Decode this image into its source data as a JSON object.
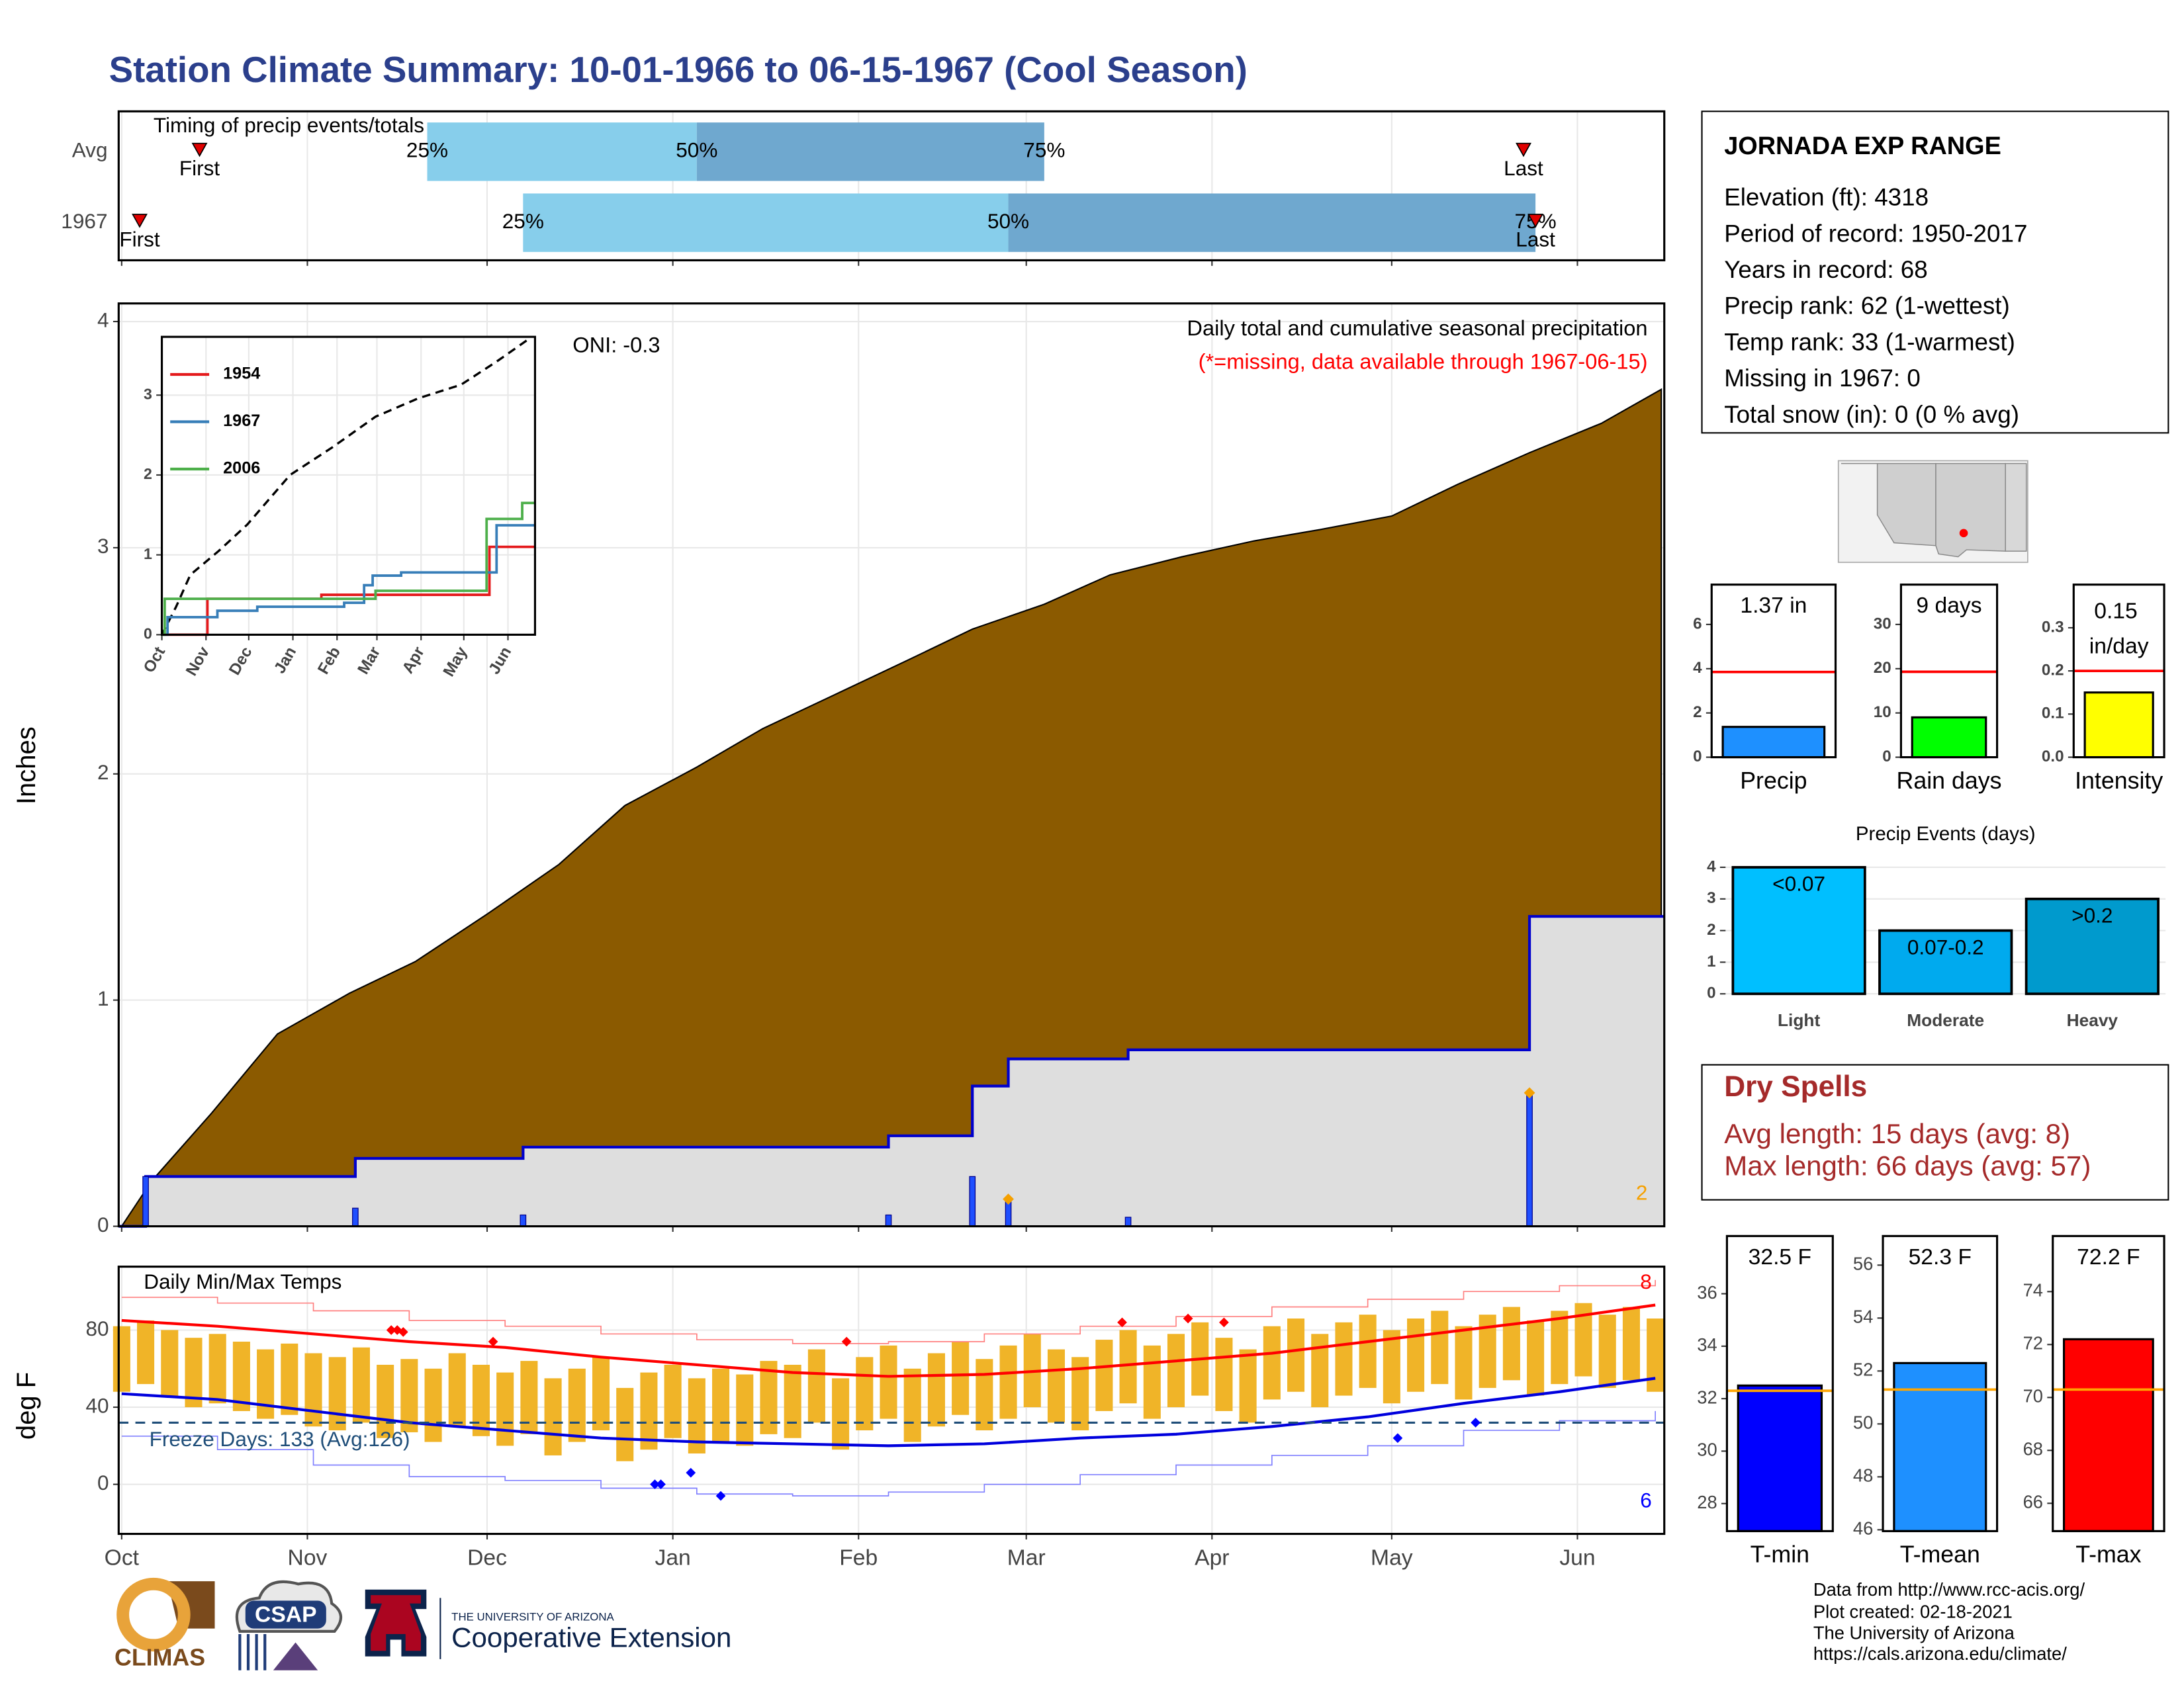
{
  "title": "Station Climate Summary: 10-01-1966 to 06-15-1967 (Cool Season)",
  "station": {
    "name": "JORNADA EXP RANGE",
    "lines": [
      "Elevation (ft): 4318",
      "Period of record: 1950-2017",
      "Years in record: 68",
      "Precip rank: 62 (1-wettest)",
      "Temp rank: 33 (1-warmest)",
      "Missing in 1967: 0",
      "Total snow (in): 0 (0 % avg)"
    ]
  },
  "dry_spells": {
    "title": "Dry Spells",
    "lines": [
      "Avg length: 15 days (avg: 8)",
      "Max length: 66 days (avg: 57)"
    ]
  },
  "credits": [
    "Data from http://www.rcc-acis.org/",
    "Plot created: 02-18-2021",
    "The University of Arizona",
    "https://cals.arizona.edu/climate/"
  ],
  "logos": {
    "climas": "CLIMAS",
    "csap": "CSAP",
    "university": "THE UNIVERSITY OF ARIZONA",
    "extension": "Cooperative Extension"
  },
  "chart_data": [
    {
      "type": "timing",
      "title": "Timing of precip events/totals",
      "categories": [
        "Avg",
        "1967"
      ],
      "xlim": [
        -0.5,
        257.5
      ],
      "xticks": [
        0,
        31,
        61,
        92,
        123,
        151,
        182,
        212,
        243
      ],
      "grid": true,
      "series": [
        {
          "name": "25%",
          "color": "#87ceeb",
          "values": [
            51,
            67
          ]
        },
        {
          "name": "50%",
          "color": "#6fa8cf",
          "values": [
            96,
            148
          ]
        },
        {
          "name": "75%",
          "values": [
            154,
            236
          ]
        }
      ],
      "first": {
        "name": "First",
        "values": [
          13,
          3
        ]
      },
      "last": {
        "name": "Last",
        "values": [
          234,
          236
        ]
      },
      "marker_color": "#e00000"
    },
    {
      "type": "cumulative",
      "ylabel": "Inches",
      "annotation": "Daily total and cumulative seasonal precipitation",
      "note": "(*=missing, data available through 1967-06-15)",
      "oni": "ONI: -0.3",
      "xlim": [
        -0.5,
        257.5
      ],
      "xticks": [
        0,
        31,
        61,
        92,
        123,
        151,
        182,
        212,
        243
      ],
      "ylim": [
        0,
        4.08
      ],
      "yticks": [
        0,
        1,
        2,
        3,
        4
      ],
      "grid": true,
      "average": {
        "color": "#8b5a00",
        "x": [
          0,
          5,
          15,
          26,
          38,
          49,
          61,
          73,
          84,
          96,
          107,
          119,
          131,
          142,
          154,
          165,
          177,
          189,
          200,
          212,
          223,
          235,
          247,
          257
        ],
        "values": [
          0,
          0.2,
          0.5,
          0.85,
          1.03,
          1.17,
          1.38,
          1.6,
          1.86,
          2.03,
          2.2,
          2.35,
          2.5,
          2.64,
          2.75,
          2.88,
          2.96,
          3.03,
          3.08,
          3.14,
          3.28,
          3.42,
          3.55,
          3.7
        ]
      },
      "daily": {
        "color": "#1f4fff",
        "line_color": "#0000cc",
        "x": [
          4,
          39,
          67,
          128,
          142,
          148,
          168,
          235
        ],
        "values": [
          0.22,
          0.08,
          0.05,
          0.05,
          0.22,
          0.12,
          0.04,
          0.59
        ]
      },
      "flags": {
        "color": "#f5a000",
        "x": [
          148,
          235
        ],
        "values": [
          0.12,
          0.59
        ],
        "count": 2
      }
    },
    {
      "type": "line",
      "xlim": [
        0,
        262
      ],
      "ylim": [
        0,
        3.73
      ],
      "yticks": [
        0,
        1,
        2,
        3
      ],
      "xticks": [
        {
          "value": 0,
          "label": "Oct"
        },
        {
          "value": 31,
          "label": "Nov"
        },
        {
          "value": 61,
          "label": "Dec"
        },
        {
          "value": 92,
          "label": "Jan"
        },
        {
          "value": 123,
          "label": "Feb"
        },
        {
          "value": 151,
          "label": "Mar"
        },
        {
          "value": 182,
          "label": "Apr"
        },
        {
          "value": 212,
          "label": "May"
        },
        {
          "value": 243,
          "label": "Jun"
        }
      ],
      "grid": true,
      "series": [
        {
          "name": "1954",
          "color": "#e41a1c",
          "x": [
            0,
            32,
            112,
            230,
            262
          ],
          "values": [
            0,
            0.45,
            0.5,
            1.1,
            1.1
          ]
        },
        {
          "name": "1967",
          "color": "#377eb8",
          "x": [
            0,
            4,
            39,
            67,
            128,
            142,
            148,
            168,
            235,
            262
          ],
          "values": [
            0,
            0.22,
            0.3,
            0.35,
            0.4,
            0.62,
            0.74,
            0.78,
            1.37,
            1.37
          ]
        },
        {
          "name": "2006",
          "color": "#4daf4a",
          "x": [
            0,
            2,
            150,
            228,
            253,
            262
          ],
          "values": [
            0,
            0.45,
            0.55,
            1.45,
            1.65,
            1.65
          ]
        }
      ],
      "average": {
        "color": "#000000",
        "x": [
          0,
          10,
          20,
          40,
          60,
          90,
          120,
          150,
          180,
          210,
          235,
          259
        ],
        "values": [
          0,
          0.35,
          0.75,
          1.05,
          1.38,
          2.0,
          2.35,
          2.73,
          2.96,
          3.13,
          3.42,
          3.72
        ]
      }
    },
    {
      "type": "single_bar",
      "categories": [
        "Precip"
      ],
      "values": [
        1.37
      ],
      "value_labels": [
        "1.37 in"
      ],
      "color": "#1e90ff",
      "average": 3.85,
      "average_color": "#ff0000",
      "ylim": [
        0,
        7.8
      ],
      "yticks": [
        0,
        2,
        4,
        6
      ]
    },
    {
      "type": "single_bar",
      "categories": [
        "Rain days"
      ],
      "values": [
        9
      ],
      "value_labels": [
        "9 days"
      ],
      "color": "#00ff00",
      "average": 19.3,
      "average_color": "#ff0000",
      "ylim": [
        0,
        39
      ],
      "yticks": [
        0,
        10,
        20,
        30
      ]
    },
    {
      "type": "single_bar",
      "categories": [
        "Intensity"
      ],
      "values": [
        0.15
      ],
      "value_labels": [
        "0.15 in/day"
      ],
      "color": "#ffff00",
      "average": 0.2,
      "average_color": "#ff0000",
      "ylim": [
        0,
        0.4
      ],
      "yticks": [
        {
          "value": 0,
          "label": "0.0"
        },
        0.1,
        0.2,
        0.3
      ]
    },
    {
      "type": "bar",
      "title": "Precip Events (days)",
      "categories": [
        "Light",
        "Moderate",
        "Heavy"
      ],
      "values": [
        4,
        2,
        3
      ],
      "bar_texts": [
        "<0.07",
        "0.07-0.2",
        ">0.2"
      ],
      "colors": [
        "#00bfff",
        "#00aaee",
        "#009acd"
      ],
      "ylim": [
        0,
        4.4
      ],
      "yticks": [
        0,
        1,
        2,
        3,
        4
      ],
      "grid": true
    },
    {
      "type": "single_bar",
      "categories": [
        "T-min"
      ],
      "values": [
        32.5
      ],
      "value_labels": [
        "32.5 F"
      ],
      "color": "#0000ff",
      "average": 32.3,
      "average_color": "#ffa500",
      "ylim": [
        26.95,
        38.2
      ],
      "yticks": [
        28,
        30,
        32,
        34,
        36
      ]
    },
    {
      "type": "single_bar",
      "categories": [
        "T-mean"
      ],
      "values": [
        52.3
      ],
      "value_labels": [
        "52.3 F"
      ],
      "color": "#1e90ff",
      "average": 51.3,
      "average_color": "#ffa500",
      "ylim": [
        45.95,
        57.1
      ],
      "yticks": [
        46,
        48,
        50,
        52,
        54,
        56
      ]
    },
    {
      "type": "single_bar",
      "categories": [
        "T-max"
      ],
      "values": [
        72.2
      ],
      "value_labels": [
        "72.2 F"
      ],
      "color": "#ff0000",
      "average": 70.3,
      "average_color": "#ffa500",
      "ylim": [
        64.95,
        76.1
      ],
      "yticks": [
        66,
        68,
        70,
        72,
        74
      ]
    },
    {
      "type": "temperature",
      "title": "Daily Min/Max Temps",
      "ylabel": "deg F",
      "xlim": [
        -0.5,
        257.5
      ],
      "xticks": [
        {
          "value": 0,
          "label": "Oct"
        },
        {
          "value": 31,
          "label": "Nov"
        },
        {
          "value": 61,
          "label": "Dec"
        },
        {
          "value": 92,
          "label": "Jan"
        },
        {
          "value": 123,
          "label": "Feb"
        },
        {
          "value": 151,
          "label": "Mar"
        },
        {
          "value": 182,
          "label": "Apr"
        },
        {
          "value": 212,
          "label": "May"
        },
        {
          "value": 243,
          "label": "Jun"
        }
      ],
      "ylim": [
        -25.7,
        112.9
      ],
      "yticks": [
        0,
        40,
        80
      ],
      "grid": true,
      "daily": {
        "color": "#f0b428",
        "x": [
          0,
          4,
          8,
          12,
          16,
          20,
          24,
          28,
          32,
          36,
          40,
          44,
          48,
          52,
          56,
          60,
          64,
          68,
          72,
          76,
          80,
          84,
          88,
          92,
          96,
          100,
          104,
          108,
          112,
          116,
          120,
          124,
          128,
          132,
          136,
          140,
          144,
          148,
          152,
          156,
          160,
          164,
          168,
          172,
          176,
          180,
          184,
          188,
          192,
          196,
          200,
          204,
          208,
          212,
          216,
          220,
          224,
          228,
          232,
          236,
          240,
          244,
          248,
          252,
          256
        ],
        "max": [
          82,
          85,
          80,
          76,
          78,
          74,
          70,
          73,
          68,
          66,
          71,
          62,
          65,
          60,
          68,
          62,
          58,
          64,
          55,
          60,
          66,
          50,
          58,
          62,
          55,
          60,
          57,
          64,
          62,
          70,
          55,
          66,
          72,
          60,
          68,
          74,
          65,
          72,
          78,
          70,
          66,
          75,
          80,
          72,
          78,
          84,
          76,
          70,
          82,
          86,
          78,
          84,
          88,
          80,
          86,
          90,
          82,
          88,
          92,
          85,
          90,
          94,
          88,
          92,
          86
        ],
        "min": [
          48,
          52,
          45,
          40,
          42,
          38,
          34,
          36,
          30,
          28,
          32,
          24,
          27,
          22,
          30,
          25,
          20,
          26,
          15,
          22,
          28,
          12,
          18,
          24,
          16,
          22,
          20,
          26,
          24,
          32,
          18,
          28,
          34,
          22,
          30,
          36,
          28,
          34,
          40,
          32,
          28,
          38,
          42,
          34,
          40,
          46,
          38,
          32,
          44,
          48,
          40,
          46,
          50,
          42,
          48,
          52,
          44,
          50,
          54,
          46,
          52,
          56,
          50,
          54,
          48
        ]
      },
      "normal_max": {
        "color": "#ff0000",
        "x": [
          0,
          16,
          32,
          48,
          64,
          80,
          96,
          112,
          128,
          144,
          160,
          176,
          192,
          208,
          224,
          240,
          256
        ],
        "values": [
          85,
          82,
          78,
          74,
          71,
          66,
          62,
          58,
          56,
          57,
          60,
          64,
          68,
          74,
          80,
          86,
          93
        ]
      },
      "normal_min": {
        "color": "#0000dd",
        "x": [
          0,
          16,
          32,
          48,
          64,
          80,
          96,
          112,
          128,
          144,
          160,
          176,
          192,
          208,
          224,
          240,
          256
        ],
        "values": [
          47,
          44,
          38,
          32,
          28,
          24,
          22,
          21,
          20,
          21,
          24,
          26,
          30,
          35,
          42,
          48,
          55
        ]
      },
      "record_max": {
        "color": "#ff8080",
        "x": [
          0,
          16,
          32,
          48,
          64,
          80,
          96,
          112,
          128,
          144,
          160,
          176,
          192,
          208,
          224,
          240,
          256
        ],
        "values": [
          97,
          94,
          90,
          85,
          82,
          78,
          75,
          73,
          74,
          78,
          82,
          87,
          92,
          96,
          100,
          103,
          106
        ]
      },
      "record_min": {
        "color": "#8080ff",
        "x": [
          0,
          16,
          32,
          48,
          64,
          80,
          96,
          112,
          128,
          144,
          160,
          176,
          192,
          208,
          224,
          240,
          256
        ],
        "values": [
          25,
          18,
          10,
          4,
          2,
          -2,
          -5,
          -6,
          -4,
          0,
          5,
          10,
          15,
          20,
          28,
          33,
          38
        ]
      },
      "record_highs": {
        "color": "#ff0000",
        "x": [
          45,
          46,
          47,
          62,
          121,
          167,
          178,
          184
        ],
        "values": [
          80,
          80,
          79,
          74,
          74,
          84,
          86,
          84
        ],
        "count": 8
      },
      "record_lows": {
        "color": "#0000ff",
        "x": [
          89,
          90,
          95,
          100,
          213,
          226
        ],
        "values": [
          0,
          0,
          6,
          -6,
          24,
          32
        ],
        "count": 6
      },
      "freeze": {
        "value": 32,
        "label": "Freeze Days: 133 (Avg:126)",
        "color": "#1f4e79"
      }
    }
  ]
}
